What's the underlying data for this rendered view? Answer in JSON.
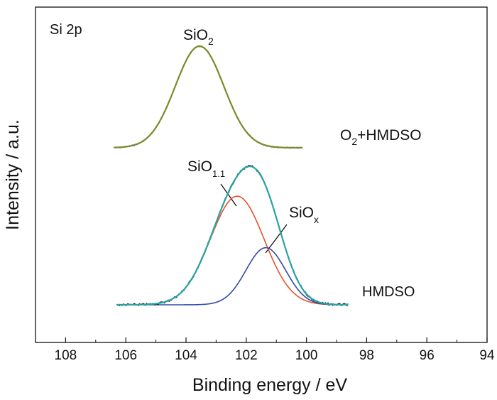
{
  "chart_data": {
    "type": "line",
    "xlabel": "Binding energy / eV",
    "ylabel": "Intensity / a.u.",
    "x_reversed": true,
    "xlim": [
      109,
      94
    ],
    "x_ticks": [
      108,
      106,
      104,
      102,
      100,
      98,
      96,
      94
    ],
    "y_ticks": [],
    "grid": false,
    "annotations": {
      "panel_label": "Si 2p",
      "sio2_label": {
        "base": "SiO",
        "sub": "2"
      },
      "sio11_label": {
        "base": "SiO",
        "sub": "1.1"
      },
      "siox_label": {
        "base": "SiO",
        "sub": "x"
      },
      "o2_label": {
        "base": "O",
        "sub": "2",
        "rest": "+HMDSO"
      },
      "hmdso_label": "HMDSO"
    },
    "series": [
      {
        "sample": "O2+HMDSO",
        "color": "#9b5fb5",
        "fit_color": "#7a8a2a",
        "peak_center": 103.55,
        "fwhm": 1.9,
        "x_range": [
          106.4,
          100.1
        ],
        "baseline": 0.0,
        "amplitude": 1.0
      },
      {
        "sample": "HMDSO",
        "color": "#111111",
        "envelope_color": "#2aa3a0",
        "x_range": [
          106.3,
          98.6
        ],
        "baseline": 0.0,
        "components": [
          {
            "name": "SiO1.1",
            "center": 102.3,
            "fwhm": 2.1,
            "amplitude": 0.78,
            "color": "#e8502a"
          },
          {
            "name": "SiOx",
            "center": 101.35,
            "fwhm": 1.55,
            "amplitude": 0.41,
            "color": "#2f4aa8"
          }
        ]
      }
    ]
  }
}
